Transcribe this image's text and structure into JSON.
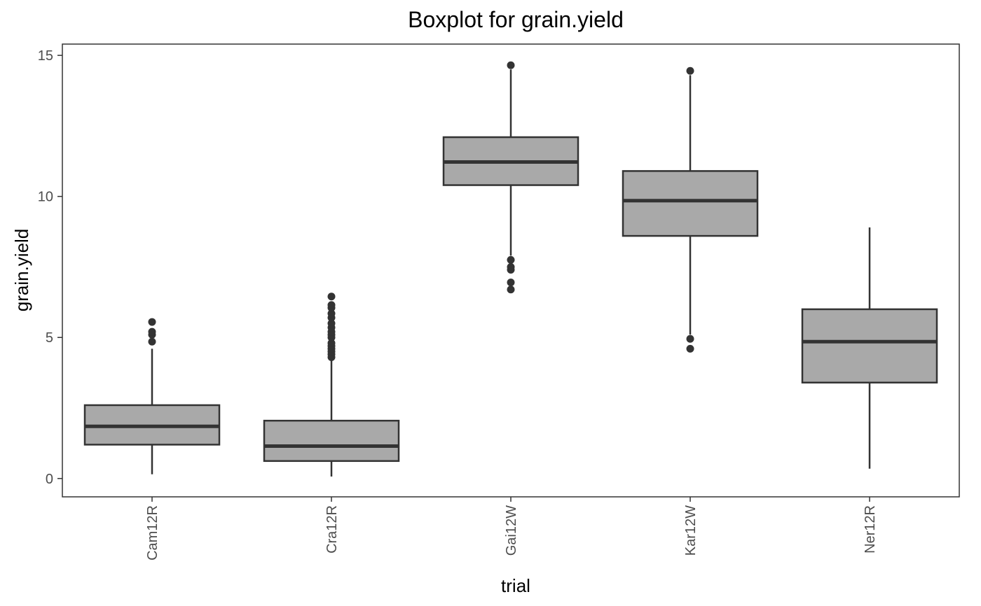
{
  "chart_data": {
    "type": "boxplot",
    "title": "Boxplot for grain.yield",
    "xlabel": "trial",
    "ylabel": "grain.yield",
    "ylim": [
      -0.65,
      15.4
    ],
    "yticks": [
      0,
      5,
      10,
      15
    ],
    "grid": false,
    "legend": "none",
    "box_fill": "#a9a9a9",
    "line_color": "#333333",
    "categories": [
      "Cam12R",
      "Cra12R",
      "Gai12W",
      "Kar12W",
      "Ner12R"
    ],
    "boxes": [
      {
        "category": "Cam12R",
        "whisker_low": 0.15,
        "q1": 1.2,
        "median": 1.85,
        "q3": 2.6,
        "whisker_high": 4.6,
        "outliers": [
          4.85,
          5.1,
          5.2,
          5.55
        ]
      },
      {
        "category": "Cra12R",
        "whisker_low": 0.07,
        "q1": 0.62,
        "median": 1.15,
        "q3": 2.05,
        "whisker_high": 4.2,
        "outliers": [
          4.3,
          4.4,
          4.5,
          4.6,
          4.7,
          4.8,
          5.0,
          5.1,
          5.2,
          5.35,
          5.5,
          5.7,
          5.85,
          6.05,
          6.15,
          6.45
        ]
      },
      {
        "category": "Gai12W",
        "whisker_low": 7.9,
        "q1": 10.4,
        "median": 11.22,
        "q3": 12.1,
        "whisker_high": 14.5,
        "outliers": [
          6.7,
          6.95,
          7.4,
          7.5,
          7.75,
          14.65
        ]
      },
      {
        "category": "Kar12W",
        "whisker_low": 5.1,
        "q1": 8.6,
        "median": 9.85,
        "q3": 10.9,
        "whisker_high": 14.3,
        "outliers": [
          4.6,
          4.95,
          14.45
        ]
      },
      {
        "category": "Ner12R",
        "whisker_low": 0.35,
        "q1": 3.4,
        "median": 4.85,
        "q3": 6.0,
        "whisker_high": 8.9,
        "outliers": []
      }
    ]
  }
}
